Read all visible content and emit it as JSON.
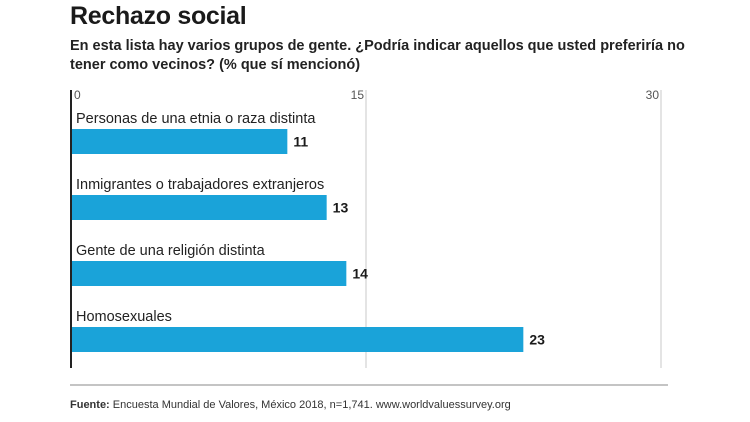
{
  "title": "Rechazo social",
  "subtitle": "En esta lista hay varios grupos de gente. ¿Podría indicar aquellos que usted preferiría no tener como vecinos? (% que sí mencionó)",
  "source": {
    "label": "Fuente:",
    "text": "Encuesta Mundial de Valores, México 2018, n=1,741. www.worldvaluessurvey.org"
  },
  "colors": {
    "bar": "#1aa3d9",
    "axis": "#222222",
    "grid": "#c8c8c8"
  },
  "chart_data": {
    "type": "bar",
    "orientation": "horizontal",
    "categories": [
      "Personas de una etnia o raza distinta",
      "Inmigrantes o trabajadores extranjeros",
      "Gente de una religión distinta",
      "Homosexuales"
    ],
    "values": [
      11,
      13,
      14,
      23
    ],
    "xlim": [
      0,
      30
    ],
    "ticks": [
      0,
      15,
      30
    ],
    "tick_labels": [
      "0",
      "15",
      "30"
    ],
    "grid": true
  }
}
